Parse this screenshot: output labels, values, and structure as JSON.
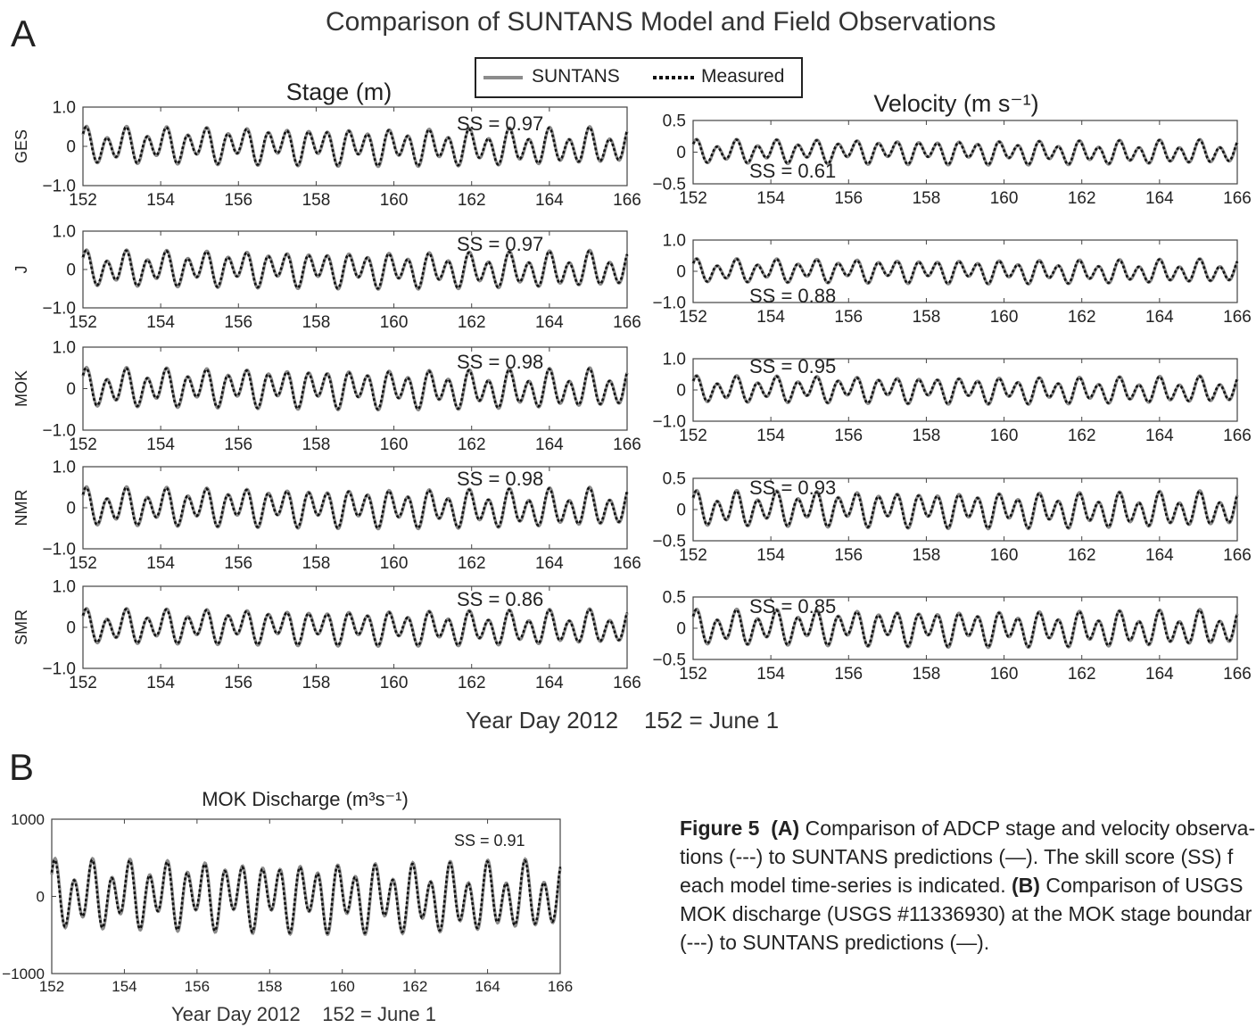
{
  "panel_a_letter": "A",
  "panel_b_letter": "B",
  "title": "Comparison of SUNTANS Model and Field Observations",
  "legend": {
    "model": "SUNTANS",
    "measured": "Measured"
  },
  "xaxis_title_a": "Year Day 2012    152 = June 1",
  "xaxis_title_b": "Year Day 2012    152 = June 1",
  "colors": {
    "model": "#8c8c8c",
    "measured": "#111111",
    "axes": "#333333"
  },
  "caption": {
    "fig": "Figure 5",
    "a_label": "(A)",
    "line1": " Comparison of ADCP stage and velocity observa-",
    "line2": "tions (---) to SUNTANS predictions (—). The skill score (SS) f",
    "line3a": "each model time-series is indicated. ",
    "b_label": "(B)",
    "line3b": " Comparison of USGS",
    "line4": "MOK discharge (USGS #11336930) at the MOK stage boundar",
    "line5": "(---) to SUNTANS predictions (—)."
  },
  "chart_data": [
    {
      "id": "stage-ges",
      "type": "line",
      "title": "Stage (m)",
      "ylabel": "GES",
      "xlim": [
        152,
        166
      ],
      "ylim": [
        -1.0,
        1.0
      ],
      "yticks": [
        "1.0",
        "0",
        "−1.0"
      ],
      "xticks": [
        "152",
        "154",
        "156",
        "158",
        "160",
        "162",
        "164",
        "166"
      ],
      "ss": "SS = 0.97",
      "amplitude": 0.5,
      "series": [
        {
          "name": "SUNTANS"
        },
        {
          "name": "Measured"
        }
      ]
    },
    {
      "id": "stage-j",
      "type": "line",
      "ylabel": "J",
      "xlim": [
        152,
        166
      ],
      "ylim": [
        -1.0,
        1.0
      ],
      "yticks": [
        "1.0",
        "0",
        "−1.0"
      ],
      "xticks": [
        "152",
        "154",
        "156",
        "158",
        "160",
        "162",
        "164",
        "166"
      ],
      "ss": "SS = 0.97",
      "amplitude": 0.5,
      "series": [
        {
          "name": "SUNTANS"
        },
        {
          "name": "Measured"
        }
      ]
    },
    {
      "id": "stage-mok",
      "type": "line",
      "ylabel": "MOK",
      "xlim": [
        152,
        166
      ],
      "ylim": [
        -1.0,
        1.0
      ],
      "yticks": [
        "1.0",
        "0",
        "−1.0"
      ],
      "xticks": [
        "152",
        "154",
        "156",
        "158",
        "160",
        "162",
        "164",
        "166"
      ],
      "ss": "SS = 0.98",
      "amplitude": 0.5,
      "series": [
        {
          "name": "SUNTANS"
        },
        {
          "name": "Measured"
        }
      ]
    },
    {
      "id": "stage-nmr",
      "type": "line",
      "ylabel": "NMR",
      "xlim": [
        152,
        166
      ],
      "ylim": [
        -1.0,
        1.0
      ],
      "yticks": [
        "1.0",
        "0",
        "−1.0"
      ],
      "xticks": [
        "152",
        "154",
        "156",
        "158",
        "160",
        "162",
        "164",
        "166"
      ],
      "ss": "SS = 0.98",
      "amplitude": 0.5,
      "series": [
        {
          "name": "SUNTANS"
        },
        {
          "name": "Measured"
        }
      ]
    },
    {
      "id": "stage-smr",
      "type": "line",
      "ylabel": "SMR",
      "xlim": [
        152,
        166
      ],
      "ylim": [
        -1.0,
        1.0
      ],
      "yticks": [
        "1.0",
        "0",
        "−1.0"
      ],
      "xticks": [
        "152",
        "154",
        "156",
        "158",
        "160",
        "162",
        "164",
        "166"
      ],
      "ss": "SS = 0.86",
      "amplitude": 0.45,
      "series": [
        {
          "name": "SUNTANS"
        },
        {
          "name": "Measured"
        }
      ]
    },
    {
      "id": "vel-ges",
      "type": "line",
      "title": "Velocity (m s⁻¹)",
      "xlim": [
        152,
        166
      ],
      "ylim": [
        -0.5,
        0.5
      ],
      "yticks": [
        "0.5",
        "0",
        "−0.5"
      ],
      "xticks": [
        "152",
        "154",
        "156",
        "158",
        "160",
        "162",
        "164",
        "166"
      ],
      "ss": "SS = 0.61",
      "amplitude": 0.2,
      "series": [
        {
          "name": "SUNTANS"
        },
        {
          "name": "Measured"
        }
      ]
    },
    {
      "id": "vel-j",
      "type": "line",
      "xlim": [
        152,
        166
      ],
      "ylim": [
        -1.0,
        1.0
      ],
      "yticks": [
        "1.0",
        "0",
        "−1.0"
      ],
      "xticks": [
        "152",
        "154",
        "156",
        "158",
        "160",
        "162",
        "164",
        "166"
      ],
      "ss": "SS = 0.88",
      "amplitude": 0.4,
      "series": [
        {
          "name": "SUNTANS"
        },
        {
          "name": "Measured"
        }
      ]
    },
    {
      "id": "vel-mok",
      "type": "line",
      "xlim": [
        152,
        166
      ],
      "ylim": [
        -1.0,
        1.0
      ],
      "yticks": [
        "1.0",
        "0",
        "−1.0"
      ],
      "xticks": [
        "152",
        "154",
        "156",
        "158",
        "160",
        "162",
        "164",
        "166"
      ],
      "ss": "SS = 0.95",
      "amplitude": 0.45,
      "series": [
        {
          "name": "SUNTANS"
        },
        {
          "name": "Measured"
        }
      ]
    },
    {
      "id": "vel-nmr",
      "type": "line",
      "xlim": [
        152,
        166
      ],
      "ylim": [
        -0.5,
        0.5
      ],
      "yticks": [
        "0.5",
        "0",
        "−0.5"
      ],
      "xticks": [
        "152",
        "154",
        "156",
        "158",
        "160",
        "162",
        "164",
        "166"
      ],
      "ss": "SS = 0.93",
      "amplitude": 0.3,
      "series": [
        {
          "name": "SUNTANS"
        },
        {
          "name": "Measured"
        }
      ]
    },
    {
      "id": "vel-smr",
      "type": "line",
      "xlim": [
        152,
        166
      ],
      "ylim": [
        -0.5,
        0.5
      ],
      "yticks": [
        "0.5",
        "0",
        "−0.5"
      ],
      "xticks": [
        "152",
        "154",
        "156",
        "158",
        "160",
        "162",
        "164",
        "166"
      ],
      "ss": "SS = 0.85",
      "amplitude": 0.3,
      "series": [
        {
          "name": "SUNTANS"
        },
        {
          "name": "Measured"
        }
      ]
    },
    {
      "id": "mok-discharge",
      "type": "line",
      "title": "MOK Discharge (m³s⁻¹)",
      "xlim": [
        152,
        166
      ],
      "ylim": [
        -1000,
        1000
      ],
      "yticks": [
        "1000",
        "0",
        "−1000"
      ],
      "xticks": [
        "152",
        "154",
        "156",
        "158",
        "160",
        "162",
        "164",
        "166"
      ],
      "ss": "SS = 0.91",
      "amplitude": 480,
      "series": [
        {
          "name": "SUNTANS"
        },
        {
          "name": "Measured"
        }
      ]
    }
  ]
}
